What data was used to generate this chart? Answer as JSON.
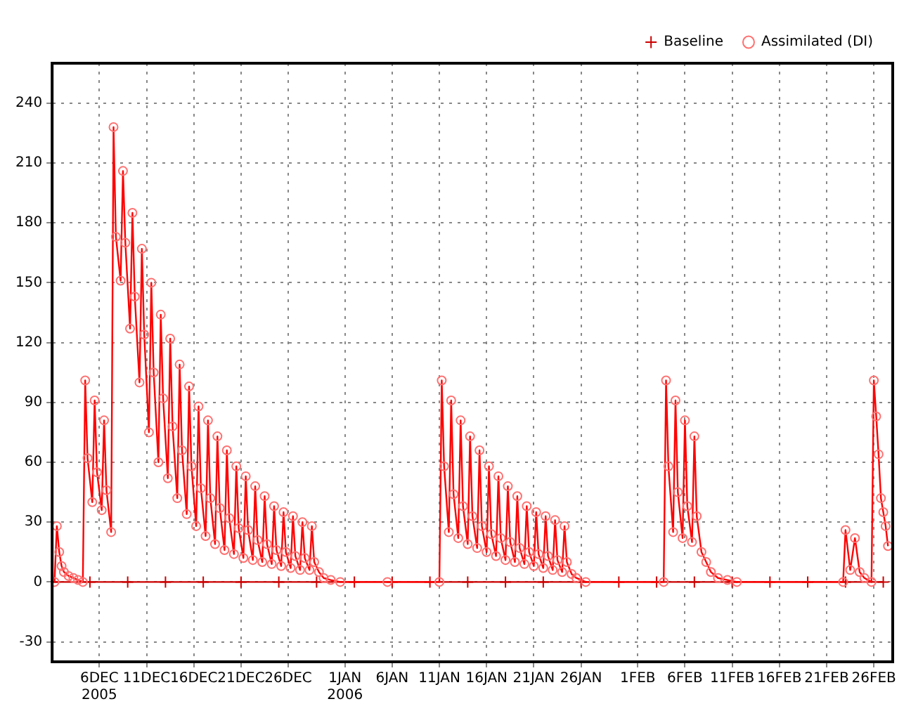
{
  "chart_data": {
    "type": "line",
    "xlim": [
      "2005-12-01",
      "2006-02-28"
    ],
    "ylim": [
      -40,
      260
    ],
    "yticks": [
      -30,
      0,
      30,
      60,
      90,
      120,
      150,
      180,
      210,
      240
    ],
    "xticks": [
      {
        "value": "2005-12-06",
        "label": "6DEC\n2005"
      },
      {
        "value": "2005-12-11",
        "label": "11DEC"
      },
      {
        "value": "2005-12-16",
        "label": "16DEC"
      },
      {
        "value": "2005-12-21",
        "label": "21DEC"
      },
      {
        "value": "2005-12-26",
        "label": "26DEC"
      },
      {
        "value": "2006-01-01",
        "label": "1JAN\n2006"
      },
      {
        "value": "2006-01-06",
        "label": "6JAN"
      },
      {
        "value": "2006-01-11",
        "label": "11JAN"
      },
      {
        "value": "2006-01-16",
        "label": "16JAN"
      },
      {
        "value": "2006-01-21",
        "label": "21JAN"
      },
      {
        "value": "2006-01-26",
        "label": "26JAN"
      },
      {
        "value": "2006-02-01",
        "label": "1FEB"
      },
      {
        "value": "2006-02-06",
        "label": "6FEB"
      },
      {
        "value": "2006-02-11",
        "label": "11FEB"
      },
      {
        "value": "2006-02-16",
        "label": "16FEB"
      },
      {
        "value": "2006-02-21",
        "label": "21FEB"
      },
      {
        "value": "2006-02-26",
        "label": "26FEB"
      }
    ],
    "grid": true,
    "legend": "top right",
    "series": [
      {
        "name": "Baseline",
        "color": "#cc0000",
        "marker": "cross",
        "x": [
          "2005-12-01",
          "2005-12-05",
          "2005-12-09",
          "2005-12-13",
          "2005-12-17",
          "2005-12-21",
          "2005-12-25",
          "2005-12-29",
          "2006-01-02",
          "2006-01-06",
          "2006-01-10",
          "2006-01-14",
          "2006-01-18",
          "2006-01-22",
          "2006-01-26",
          "2006-01-30",
          "2006-02-03",
          "2006-02-07",
          "2006-02-11",
          "2006-02-15",
          "2006-02-19",
          "2006-02-23",
          "2006-02-27"
        ],
        "values": [
          0,
          0,
          0,
          0,
          0,
          0,
          0,
          0,
          0,
          0,
          0,
          0,
          0,
          0,
          0,
          0,
          0,
          0,
          0,
          0,
          0,
          0,
          0
        ]
      },
      {
        "name": "Assimilated (DI)",
        "color": "#ff0000",
        "marker": "circle",
        "x": [
          "2005-12-01T06:00",
          "2005-12-01T12:00",
          "2005-12-01T18:00",
          "2005-12-02T00:00",
          "2005-12-02T06:00",
          "2005-12-02T18:00",
          "2005-12-03T06:00",
          "2005-12-03T18:00",
          "2005-12-04T06:00",
          "2005-12-04T12:00",
          "2005-12-04T18:00",
          "2005-12-05T06:00",
          "2005-12-05T12:00",
          "2005-12-05T18:00",
          "2005-12-06T06:00",
          "2005-12-06T12:00",
          "2005-12-06T18:00",
          "2005-12-07T06:00",
          "2005-12-07T12:00",
          "2005-12-07T18:00",
          "2005-12-08T06:00",
          "2005-12-08T12:00",
          "2005-12-08T18:00",
          "2005-12-09T06:00",
          "2005-12-09T12:00",
          "2005-12-09T18:00",
          "2005-12-10T06:00",
          "2005-12-10T12:00",
          "2005-12-10T18:00",
          "2005-12-11T06:00",
          "2005-12-11T12:00",
          "2005-12-11T18:00",
          "2005-12-12T06:00",
          "2005-12-12T12:00",
          "2005-12-12T18:00",
          "2005-12-13T06:00",
          "2005-12-13T12:00",
          "2005-12-13T18:00",
          "2005-12-14T06:00",
          "2005-12-14T12:00",
          "2005-12-14T18:00",
          "2005-12-15T06:00",
          "2005-12-15T12:00",
          "2005-12-15T18:00",
          "2005-12-16T06:00",
          "2005-12-16T12:00",
          "2005-12-16T18:00",
          "2005-12-17T06:00",
          "2005-12-17T12:00",
          "2005-12-17T18:00",
          "2005-12-18T06:00",
          "2005-12-18T12:00",
          "2005-12-18T18:00",
          "2005-12-19T06:00",
          "2005-12-19T12:00",
          "2005-12-19T18:00",
          "2005-12-20T06:00",
          "2005-12-20T12:00",
          "2005-12-20T18:00",
          "2005-12-21T06:00",
          "2005-12-21T12:00",
          "2005-12-21T18:00",
          "2005-12-22T06:00",
          "2005-12-22T12:00",
          "2005-12-22T18:00",
          "2005-12-23T06:00",
          "2005-12-23T12:00",
          "2005-12-23T18:00",
          "2005-12-24T06:00",
          "2005-12-24T12:00",
          "2005-12-24T18:00",
          "2005-12-25T06:00",
          "2005-12-25T12:00",
          "2005-12-25T18:00",
          "2005-12-26T06:00",
          "2005-12-26T12:00",
          "2005-12-26T18:00",
          "2005-12-27T06:00",
          "2005-12-27T12:00",
          "2005-12-27T18:00",
          "2005-12-28T06:00",
          "2005-12-28T12:00",
          "2005-12-28T18:00",
          "2005-12-29T06:00",
          "2005-12-29T18:00",
          "2005-12-30T12:00",
          "2005-12-31T12:00",
          "2006-01-05T12:00",
          "2006-01-11T00:00",
          "2006-01-11T06:00",
          "2006-01-11T12:00",
          "2006-01-12T00:00",
          "2006-01-12T06:00",
          "2006-01-12T12:00",
          "2006-01-13T00:00",
          "2006-01-13T06:00",
          "2006-01-13T12:00",
          "2006-01-14T00:00",
          "2006-01-14T06:00",
          "2006-01-14T12:00",
          "2006-01-15T00:00",
          "2006-01-15T06:00",
          "2006-01-15T12:00",
          "2006-01-16T00:00",
          "2006-01-16T06:00",
          "2006-01-16T12:00",
          "2006-01-17T00:00",
          "2006-01-17T06:00",
          "2006-01-17T12:00",
          "2006-01-18T00:00",
          "2006-01-18T06:00",
          "2006-01-18T12:00",
          "2006-01-19T00:00",
          "2006-01-19T06:00",
          "2006-01-19T12:00",
          "2006-01-20T00:00",
          "2006-01-20T06:00",
          "2006-01-20T12:00",
          "2006-01-21T00:00",
          "2006-01-21T06:00",
          "2006-01-21T12:00",
          "2006-01-22T00:00",
          "2006-01-22T06:00",
          "2006-01-22T12:00",
          "2006-01-23T00:00",
          "2006-01-23T06:00",
          "2006-01-23T12:00",
          "2006-01-24T00:00",
          "2006-01-24T06:00",
          "2006-01-24T12:00",
          "2006-01-25T00:00",
          "2006-01-25T12:00",
          "2006-01-26T12:00",
          "2006-02-03T18:00",
          "2006-02-04T00:00",
          "2006-02-04T06:00",
          "2006-02-04T18:00",
          "2006-02-05T00:00",
          "2006-02-05T06:00",
          "2006-02-05T18:00",
          "2006-02-06T00:00",
          "2006-02-06T06:00",
          "2006-02-06T18:00",
          "2006-02-07T00:00",
          "2006-02-07T06:00",
          "2006-02-07T18:00",
          "2006-02-08T06:00",
          "2006-02-08T18:00",
          "2006-02-09T12:00",
          "2006-02-10T12:00",
          "2006-02-11T12:00",
          "2006-02-22T18:00",
          "2006-02-23T00:00",
          "2006-02-23T12:00",
          "2006-02-24T00:00",
          "2006-02-24T12:00",
          "2006-02-25T00:00",
          "2006-02-25T18:00",
          "2006-02-26T00:00",
          "2006-02-26T06:00",
          "2006-02-26T12:00",
          "2006-02-26T18:00",
          "2006-02-27T00:00",
          "2006-02-27T06:00",
          "2006-02-27T12:00"
        ],
        "values": [
          0,
          28,
          15,
          8,
          5,
          3,
          2,
          1,
          0,
          101,
          62,
          40,
          91,
          55,
          36,
          81,
          46,
          25,
          228,
          173,
          151,
          206,
          170,
          127,
          185,
          143,
          100,
          167,
          124,
          75,
          150,
          105,
          60,
          134,
          92,
          52,
          122,
          78,
          42,
          109,
          66,
          34,
          98,
          58,
          28,
          88,
          47,
          23,
          81,
          42,
          19,
          73,
          37,
          16,
          66,
          32,
          14,
          58,
          27,
          12,
          53,
          26,
          11,
          48,
          21,
          10,
          43,
          19,
          9,
          38,
          16,
          8,
          35,
          15,
          7,
          33,
          13,
          6,
          30,
          12,
          6,
          28,
          10,
          5,
          2,
          1,
          0,
          0,
          0,
          101,
          58,
          25,
          91,
          44,
          22,
          81,
          38,
          19,
          73,
          33,
          17,
          66,
          28,
          15,
          58,
          24,
          13,
          53,
          22,
          11,
          48,
          20,
          10,
          43,
          17,
          9,
          38,
          15,
          8,
          35,
          14,
          7,
          33,
          13,
          6,
          31,
          11,
          5,
          28,
          10,
          4,
          2,
          0,
          0,
          101,
          58,
          25,
          91,
          45,
          22,
          81,
          38,
          20,
          73,
          33,
          15,
          10,
          5,
          2,
          1,
          0,
          0,
          26,
          6,
          22,
          5,
          2,
          0,
          101,
          83,
          64,
          42,
          35,
          28,
          18
        ]
      }
    ]
  }
}
